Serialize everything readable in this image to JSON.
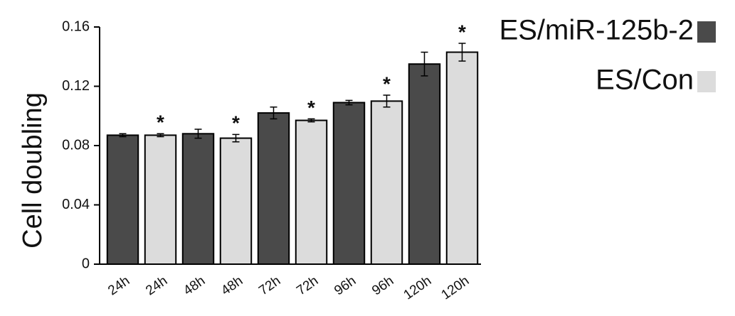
{
  "chart_data": {
    "type": "bar",
    "y_label": "Cell doubling",
    "categories": [
      "24h",
      "24h",
      "48h",
      "48h",
      "72h",
      "72h",
      "96h",
      "96h",
      "120h",
      "120h"
    ],
    "series": [
      {
        "name": "ES/miR-125b-2",
        "color": "#4a4a4a",
        "values": [
          0.087,
          null,
          0.088,
          null,
          0.102,
          null,
          0.109,
          null,
          0.135,
          null
        ],
        "errors": [
          0.001,
          null,
          0.003,
          null,
          0.004,
          null,
          0.0015,
          null,
          0.008,
          null
        ],
        "markers": [
          null,
          null,
          null,
          null,
          null,
          null,
          null,
          null,
          null,
          null
        ]
      },
      {
        "name": "ES/Con",
        "color": "#dcdcdc",
        "values": [
          null,
          0.087,
          null,
          0.085,
          null,
          0.097,
          null,
          0.11,
          null,
          0.143
        ],
        "errors": [
          null,
          0.001,
          null,
          0.0025,
          null,
          0.001,
          null,
          0.004,
          null,
          0.006
        ],
        "markers": [
          null,
          "*",
          null,
          "*",
          null,
          "*",
          null,
          "*",
          null,
          "*"
        ]
      }
    ],
    "ylim": [
      0,
      0.16
    ],
    "yticks": [
      {
        "value": 0,
        "label": "0"
      },
      {
        "value": 0.04,
        "label": "0.04"
      },
      {
        "value": 0.08,
        "label": "0.08"
      },
      {
        "value": 0.12,
        "label": "0.12"
      },
      {
        "value": 0.16,
        "label": "0.16"
      }
    ],
    "legend": "top-right"
  }
}
